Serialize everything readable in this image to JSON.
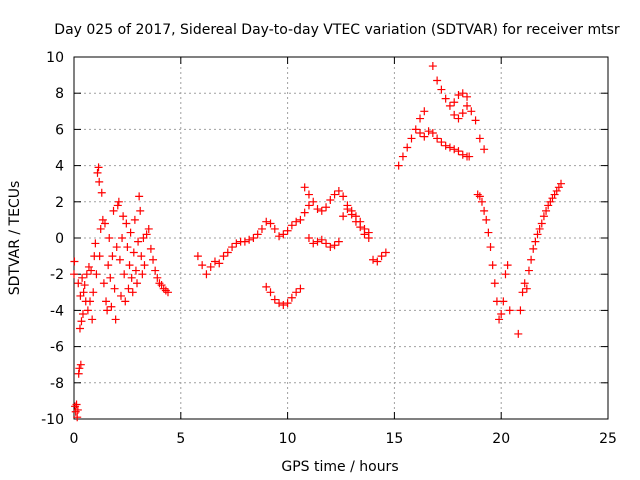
{
  "chart_data": {
    "type": "scatter",
    "title": "Day 025 of 2017, Sidereal Day-to-day VTEC variation (SDTVAR) for receiver mtsr",
    "xlabel": "GPS time / hours",
    "ylabel": "SDTVAR / TECUs",
    "xlim": [
      0,
      25
    ],
    "ylim": [
      -10,
      10
    ],
    "xticks": [
      0,
      5,
      10,
      15,
      20,
      25
    ],
    "yticks": [
      -10,
      -8,
      -6,
      -4,
      -2,
      0,
      2,
      4,
      6,
      8,
      10
    ],
    "grid": true,
    "marker": "+",
    "color": "#ff0000",
    "series": [
      {
        "points": [
          [
            0.0,
            -2.0
          ],
          [
            0.02,
            -1.3
          ],
          [
            0.05,
            -9.3
          ],
          [
            0.08,
            -9.6
          ],
          [
            0.12,
            -9.2
          ],
          [
            0.15,
            -9.9
          ],
          [
            0.18,
            -9.5
          ],
          [
            0.2,
            -2.5
          ],
          [
            0.22,
            -7.5
          ],
          [
            0.25,
            -7.2
          ],
          [
            0.28,
            -5.0
          ],
          [
            0.3,
            -3.2
          ],
          [
            0.32,
            -7.0
          ],
          [
            0.35,
            -4.6
          ],
          [
            0.38,
            -2.2
          ],
          [
            0.42,
            -4.2
          ],
          [
            0.45,
            -3.0
          ],
          [
            0.5,
            -2.6
          ],
          [
            0.55,
            -3.5
          ],
          [
            0.6,
            -2.0
          ],
          [
            0.65,
            -4.0
          ],
          [
            0.7,
            -1.6
          ],
          [
            0.75,
            -3.5
          ],
          [
            0.8,
            -1.8
          ],
          [
            0.85,
            -4.5
          ],
          [
            0.9,
            -3.0
          ],
          [
            0.95,
            -1.0
          ],
          [
            1.0,
            -0.3
          ],
          [
            1.05,
            -2.0
          ],
          [
            1.1,
            3.6
          ],
          [
            1.15,
            3.9
          ],
          [
            1.18,
            3.1
          ],
          [
            1.2,
            -1.0
          ],
          [
            1.25,
            0.5
          ],
          [
            1.3,
            2.5
          ],
          [
            1.35,
            1.0
          ],
          [
            1.4,
            -2.5
          ],
          [
            1.45,
            0.8
          ],
          [
            1.5,
            -3.5
          ],
          [
            1.55,
            -4.0
          ],
          [
            1.6,
            -1.5
          ],
          [
            1.65,
            0.0
          ],
          [
            1.7,
            -2.2
          ],
          [
            1.75,
            -3.8
          ],
          [
            1.8,
            -1.0
          ],
          [
            1.85,
            1.5
          ],
          [
            1.9,
            -2.8
          ],
          [
            1.95,
            -4.5
          ],
          [
            2.0,
            -0.5
          ],
          [
            2.05,
            1.8
          ],
          [
            2.1,
            2.0
          ],
          [
            2.15,
            -1.2
          ],
          [
            2.2,
            -3.2
          ],
          [
            2.25,
            0.0
          ],
          [
            2.3,
            1.2
          ],
          [
            2.35,
            -2.0
          ],
          [
            2.4,
            -3.5
          ],
          [
            2.45,
            0.8
          ],
          [
            2.5,
            -0.5
          ],
          [
            2.55,
            -2.8
          ],
          [
            2.6,
            -1.5
          ],
          [
            2.65,
            0.3
          ],
          [
            2.7,
            -2.2
          ],
          [
            2.75,
            -3.0
          ],
          [
            2.8,
            -0.8
          ],
          [
            2.85,
            1.0
          ],
          [
            2.9,
            -1.8
          ],
          [
            2.95,
            -2.5
          ],
          [
            3.0,
            -0.2
          ],
          [
            3.05,
            2.3
          ],
          [
            3.1,
            1.5
          ],
          [
            3.15,
            -1.0
          ],
          [
            3.2,
            -2.0
          ],
          [
            3.25,
            0.0
          ],
          [
            3.3,
            -1.5
          ],
          [
            3.4,
            0.2
          ],
          [
            3.5,
            0.5
          ],
          [
            3.6,
            -0.6
          ],
          [
            3.7,
            -1.2
          ],
          [
            3.8,
            -1.8
          ],
          [
            3.9,
            -2.2
          ],
          [
            4.0,
            -2.5
          ],
          [
            4.1,
            -2.6
          ],
          [
            4.2,
            -2.8
          ],
          [
            4.3,
            -2.9
          ],
          [
            4.4,
            -3.0
          ],
          [
            5.8,
            -1.0
          ],
          [
            6.0,
            -1.5
          ],
          [
            6.2,
            -2.0
          ],
          [
            6.4,
            -1.6
          ],
          [
            6.6,
            -1.3
          ],
          [
            6.8,
            -1.4
          ],
          [
            7.0,
            -1.0
          ],
          [
            7.2,
            -0.8
          ],
          [
            7.4,
            -0.5
          ],
          [
            7.6,
            -0.3
          ],
          [
            7.8,
            -0.2
          ],
          [
            8.0,
            -0.2
          ],
          [
            8.2,
            -0.1
          ],
          [
            8.4,
            0.0
          ],
          [
            8.6,
            0.2
          ],
          [
            8.8,
            0.5
          ],
          [
            9.0,
            0.9
          ],
          [
            9.2,
            0.8
          ],
          [
            9.4,
            0.5
          ],
          [
            9.6,
            0.1
          ],
          [
            9.8,
            0.2
          ],
          [
            10.0,
            0.4
          ],
          [
            10.2,
            0.7
          ],
          [
            10.4,
            0.9
          ],
          [
            10.6,
            1.0
          ],
          [
            10.8,
            1.4
          ],
          [
            11.0,
            1.8
          ],
          [
            9.0,
            -2.7
          ],
          [
            9.2,
            -3.0
          ],
          [
            9.4,
            -3.4
          ],
          [
            9.6,
            -3.6
          ],
          [
            9.8,
            -3.7
          ],
          [
            10.0,
            -3.6
          ],
          [
            10.2,
            -3.3
          ],
          [
            10.4,
            -3.0
          ],
          [
            10.6,
            -2.8
          ],
          [
            10.8,
            2.8
          ],
          [
            11.0,
            2.4
          ],
          [
            11.2,
            2.0
          ],
          [
            11.4,
            1.6
          ],
          [
            11.6,
            1.5
          ],
          [
            11.8,
            1.7
          ],
          [
            12.0,
            2.1
          ],
          [
            12.2,
            2.4
          ],
          [
            12.4,
            2.6
          ],
          [
            12.6,
            2.3
          ],
          [
            12.8,
            1.8
          ],
          [
            13.0,
            1.5
          ],
          [
            13.2,
            1.2
          ],
          [
            13.4,
            0.9
          ],
          [
            13.6,
            0.5
          ],
          [
            13.8,
            0.3
          ],
          [
            11.0,
            0.0
          ],
          [
            11.2,
            -0.3
          ],
          [
            11.4,
            -0.2
          ],
          [
            11.6,
            -0.1
          ],
          [
            11.8,
            -0.3
          ],
          [
            12.0,
            -0.5
          ],
          [
            12.2,
            -0.4
          ],
          [
            12.4,
            -0.2
          ],
          [
            12.6,
            1.2
          ],
          [
            12.8,
            1.6
          ],
          [
            13.0,
            1.3
          ],
          [
            13.2,
            0.9
          ],
          [
            13.4,
            0.6
          ],
          [
            13.6,
            0.2
          ],
          [
            13.8,
            0.0
          ],
          [
            14.0,
            -1.2
          ],
          [
            14.2,
            -1.3
          ],
          [
            14.4,
            -1.0
          ],
          [
            14.6,
            -0.8
          ],
          [
            15.2,
            4.0
          ],
          [
            15.4,
            4.5
          ],
          [
            15.6,
            5.0
          ],
          [
            15.8,
            5.5
          ],
          [
            16.0,
            6.0
          ],
          [
            16.2,
            6.6
          ],
          [
            16.4,
            7.0
          ],
          [
            16.2,
            5.8
          ],
          [
            16.4,
            5.6
          ],
          [
            16.6,
            5.9
          ],
          [
            16.8,
            9.5
          ],
          [
            17.0,
            8.7
          ],
          [
            17.2,
            8.2
          ],
          [
            17.4,
            7.7
          ],
          [
            17.6,
            7.3
          ],
          [
            17.8,
            7.5
          ],
          [
            18.0,
            7.9
          ],
          [
            18.2,
            8.0
          ],
          [
            18.4,
            7.8
          ],
          [
            16.8,
            5.8
          ],
          [
            17.0,
            5.5
          ],
          [
            17.2,
            5.3
          ],
          [
            17.4,
            5.1
          ],
          [
            17.6,
            5.0
          ],
          [
            17.8,
            4.9
          ],
          [
            18.0,
            4.8
          ],
          [
            18.2,
            4.6
          ],
          [
            18.4,
            4.5
          ],
          [
            18.5,
            4.5
          ],
          [
            17.8,
            6.8
          ],
          [
            18.0,
            6.6
          ],
          [
            18.2,
            6.9
          ],
          [
            18.4,
            7.3
          ],
          [
            18.6,
            7.0
          ],
          [
            18.8,
            6.5
          ],
          [
            19.0,
            5.5
          ],
          [
            19.2,
            4.9
          ],
          [
            18.9,
            2.4
          ],
          [
            19.0,
            2.3
          ],
          [
            19.1,
            2.0
          ],
          [
            19.2,
            1.5
          ],
          [
            19.3,
            1.0
          ],
          [
            19.4,
            0.3
          ],
          [
            19.5,
            -0.5
          ],
          [
            19.6,
            -1.5
          ],
          [
            19.7,
            -2.5
          ],
          [
            19.8,
            -3.5
          ],
          [
            19.9,
            -4.5
          ],
          [
            20.0,
            -4.2
          ],
          [
            20.1,
            -3.5
          ],
          [
            20.2,
            -2.0
          ],
          [
            20.3,
            -1.5
          ],
          [
            20.4,
            -4.0
          ],
          [
            20.8,
            -5.3
          ],
          [
            20.9,
            -4.0
          ],
          [
            21.0,
            -3.0
          ],
          [
            21.1,
            -2.5
          ],
          [
            21.2,
            -2.8
          ],
          [
            21.3,
            -1.8
          ],
          [
            21.4,
            -1.2
          ],
          [
            21.5,
            -0.6
          ],
          [
            21.6,
            -0.2
          ],
          [
            21.7,
            0.2
          ],
          [
            21.8,
            0.5
          ],
          [
            21.9,
            0.8
          ],
          [
            22.0,
            1.2
          ],
          [
            22.1,
            1.5
          ],
          [
            22.2,
            1.8
          ],
          [
            22.3,
            2.0
          ],
          [
            22.4,
            2.2
          ],
          [
            22.5,
            2.4
          ],
          [
            22.6,
            2.6
          ],
          [
            22.7,
            2.8
          ],
          [
            22.8,
            3.0
          ]
        ]
      }
    ]
  }
}
